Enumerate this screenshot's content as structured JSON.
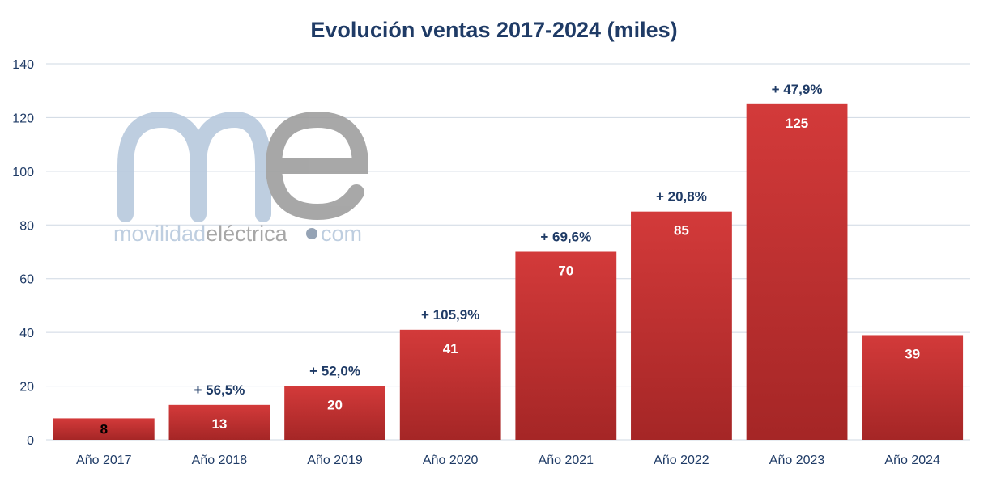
{
  "watermark": {
    "mark": "me",
    "text_light": "movilidad",
    "text_dark": "eléctrica",
    "text_domain": "com",
    "color_light": "#b8c9dd",
    "color_dark": "#9e9e9e"
  },
  "colors": {
    "bar_top": "#d33a3a",
    "bar_bottom": "#a52626",
    "title": "#1f3b66",
    "grid": "#cfd8e3"
  },
  "chart_data": {
    "type": "bar",
    "title": "Evolución ventas 2017-2024 (miles)",
    "xlabel": "",
    "ylabel": "",
    "ylim": [
      0,
      140
    ],
    "yticks": [
      0,
      20,
      40,
      60,
      80,
      100,
      120,
      140
    ],
    "grid": true,
    "categories": [
      "Año 2017",
      "Año 2018",
      "Año 2019",
      "Año 2020",
      "Año 2021",
      "Año 2022",
      "Año 2023",
      "Año 2024"
    ],
    "values": [
      8,
      13,
      20,
      41,
      70,
      85,
      125,
      39
    ],
    "value_labels": [
      "8",
      "13",
      "20",
      "41",
      "70",
      "85",
      "125",
      "39"
    ],
    "growth_labels": [
      "",
      "+ 56,5%",
      "+ 52,0%",
      "+ 105,9%",
      "+ 69,6%",
      "+ 20,8%",
      "+ 47,9%",
      ""
    ]
  }
}
